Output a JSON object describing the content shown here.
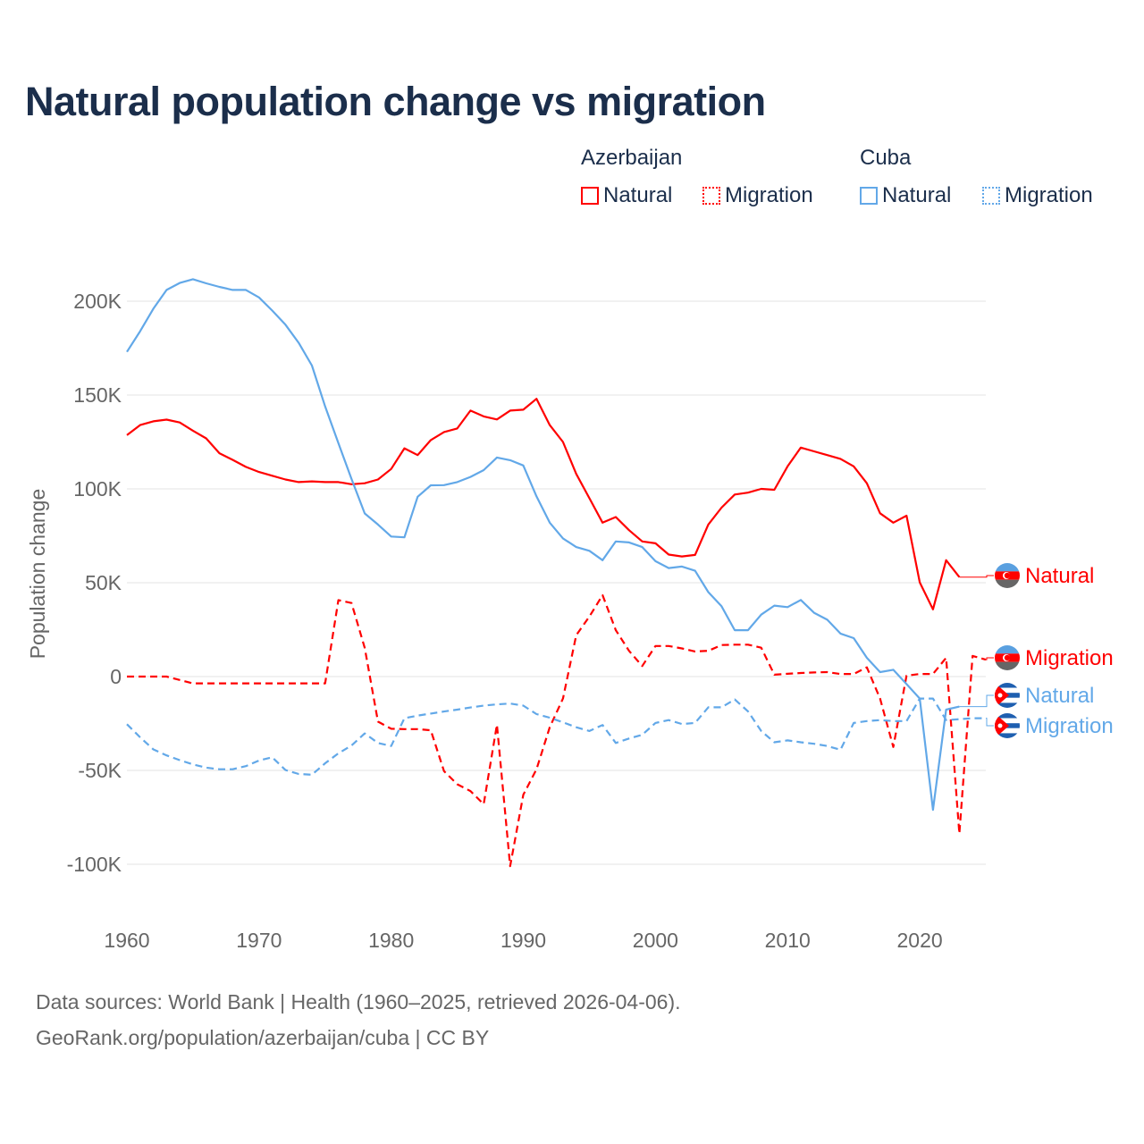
{
  "colors": {
    "azerbaijan": "#ff0000",
    "cuba": "#62a8e8",
    "title": "#1b2e4b",
    "axis_text": "#666666",
    "grid": "#e3e3e3"
  },
  "legend": {
    "groups": [
      {
        "name": "Azerbaijan",
        "items": [
          "Natural",
          "Migration"
        ]
      },
      {
        "name": "Cuba",
        "items": [
          "Natural",
          "Migration"
        ]
      }
    ]
  },
  "footer": {
    "line1": "Data sources: World Bank | Health (1960–2025, retrieved 2026-04-06).",
    "line2": "GeoRank.org/population/azerbaijan/cuba | CC BY"
  },
  "chart_data": {
    "type": "line",
    "title": "Natural population change vs migration",
    "xlabel": "",
    "ylabel": "Population change",
    "xlim": [
      1960,
      2025
    ],
    "ylim": [
      -100000,
      200000
    ],
    "x_ticks": [
      1960,
      1970,
      1980,
      1990,
      2000,
      2010,
      2020
    ],
    "x_tick_labels": [
      "1960",
      "1970",
      "1980",
      "1990",
      "2000",
      "2010",
      "2020"
    ],
    "y_ticks": [
      -100000,
      -50000,
      0,
      50000,
      100000,
      150000,
      200000
    ],
    "y_tick_labels": [
      "-100K",
      "-50K",
      "0",
      "50K",
      "100K",
      "150K",
      "200K"
    ],
    "grid": true,
    "legend_placement": "top-right",
    "start_year": 1960,
    "series": [
      {
        "name": "Azerbaijan Natural",
        "label": "Natural",
        "country": "azerbaijan",
        "style": "solid",
        "values": [
          128600,
          134000,
          136000,
          136900,
          135400,
          131000,
          126900,
          119000,
          115500,
          111700,
          109000,
          107000,
          105000,
          103600,
          104000,
          103600,
          103600,
          102500,
          103000,
          105000,
          110600,
          121600,
          118000,
          126000,
          130300,
          132200,
          141700,
          138600,
          137000,
          141700,
          142200,
          148000,
          134000,
          125000,
          108000,
          95000,
          82000,
          85000,
          78000,
          72000,
          71000,
          65000,
          64000,
          64800,
          81000,
          90000,
          97000,
          98000,
          100000,
          99500,
          112000,
          122000,
          120000,
          118000,
          116000,
          112000,
          103000,
          87000,
          82000,
          85700,
          50200,
          35800,
          62000,
          53000
        ]
      },
      {
        "name": "Azerbaijan Migration",
        "label": "Migration",
        "country": "azerbaijan",
        "style": "dashed",
        "values": [
          0,
          0,
          0,
          0,
          -1800,
          -3600,
          -3600,
          -3600,
          -3600,
          -3600,
          -3600,
          -3600,
          -3600,
          -3600,
          -3600,
          -3600,
          40700,
          39200,
          15300,
          -24000,
          -27800,
          -28000,
          -28000,
          -28600,
          -50400,
          -57400,
          -61000,
          -68000,
          -25600,
          -101000,
          -63000,
          -49400,
          -27000,
          -11700,
          22000,
          32000,
          43400,
          24700,
          13700,
          5600,
          16300,
          16300,
          15000,
          13400,
          13700,
          16800,
          17000,
          17000,
          15400,
          1000,
          1500,
          1900,
          2200,
          2400,
          1400,
          1400,
          4900,
          -11700,
          -37500,
          500,
          1400,
          1400,
          10000,
          -83700,
          11000,
          9000
        ]
      },
      {
        "name": "Cuba Natural",
        "label": "Natural",
        "country": "cuba",
        "style": "solid",
        "values": [
          173000,
          184000,
          196000,
          206000,
          209700,
          211700,
          209500,
          207600,
          206000,
          206000,
          202000,
          195000,
          187500,
          177800,
          165700,
          143900,
          124400,
          105300,
          86900,
          81000,
          74600,
          74200,
          95800,
          101900,
          102000,
          103600,
          106400,
          110000,
          116700,
          115300,
          112500,
          96000,
          82000,
          73600,
          69000,
          67000,
          62000,
          72000,
          71500,
          69000,
          61500,
          57800,
          58600,
          56400,
          45000,
          37500,
          24700,
          24700,
          33000,
          37800,
          37000,
          40800,
          34000,
          30300,
          22900,
          20500,
          10000,
          2400,
          3600,
          -4000,
          -11700,
          -71000,
          -17600,
          -16000
        ]
      },
      {
        "name": "Cuba Migration",
        "label": "Migration",
        "country": "cuba",
        "style": "dashed",
        "values": [
          -25400,
          -32400,
          -38800,
          -42000,
          -44500,
          -46800,
          -48500,
          -49400,
          -49400,
          -47700,
          -44700,
          -43000,
          -49800,
          -51900,
          -52300,
          -46200,
          -40900,
          -36700,
          -30300,
          -35400,
          -37000,
          -22200,
          -20800,
          -19700,
          -18600,
          -17600,
          -16500,
          -15500,
          -14800,
          -14400,
          -15500,
          -20000,
          -21900,
          -24400,
          -27000,
          -29000,
          -25800,
          -35400,
          -33000,
          -31000,
          -24700,
          -23200,
          -25300,
          -24700,
          -16400,
          -16400,
          -12200,
          -18500,
          -29000,
          -35000,
          -34000,
          -35000,
          -35800,
          -37000,
          -39000,
          -24700,
          -23700,
          -23200,
          -23700,
          -23700,
          -11700,
          -11700,
          -23200,
          -22700,
          -22200,
          -22200
        ]
      }
    ]
  }
}
